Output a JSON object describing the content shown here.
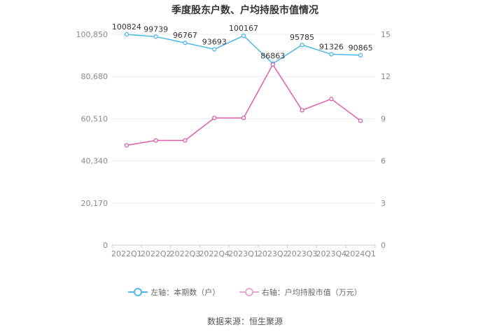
{
  "chart_data": {
    "type": "line",
    "title": "季度股东户数、户均持股市值情况",
    "categories": [
      "2022Q1",
      "2022Q2",
      "2022Q3",
      "2022Q4",
      "2023Q1",
      "2023Q2",
      "2023Q3",
      "2023Q4",
      "2024Q1"
    ],
    "left_axis": {
      "min": 0,
      "max": 100850,
      "ticks": [
        "0",
        "20,170",
        "40,340",
        "60,510",
        "80,680",
        "100,850"
      ],
      "tick_values": [
        0,
        20170,
        40340,
        60510,
        80680,
        100850
      ]
    },
    "right_axis": {
      "min": 0,
      "max": 15,
      "ticks": [
        "0",
        "3",
        "6",
        "9",
        "12",
        "15"
      ],
      "tick_values": [
        0,
        3,
        6,
        9,
        12,
        15
      ]
    },
    "series": [
      {
        "name": "左轴：本期数（户）",
        "axis": "left",
        "color": "#4db8e8",
        "values": [
          100824,
          99739,
          96767,
          93693,
          100167,
          86863,
          95785,
          91326,
          90865
        ],
        "labels": [
          "100824",
          "99739",
          "96767",
          "93693",
          "100167",
          "86863",
          "95785",
          "91326",
          "90865"
        ]
      },
      {
        "name": "右轴：户均持股市值（万元）",
        "axis": "right",
        "color": "#d95fa8",
        "values": [
          7.1,
          7.45,
          7.45,
          9.05,
          9.05,
          12.85,
          9.6,
          10.4,
          8.85
        ]
      }
    ],
    "grid": true,
    "legend_position": "bottom"
  },
  "source": "数据来源：恒生聚源"
}
